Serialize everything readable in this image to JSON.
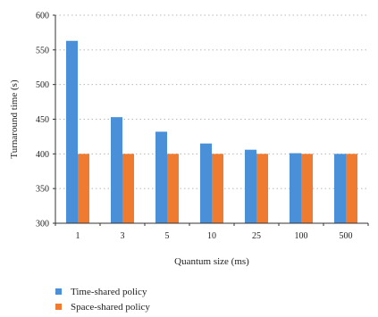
{
  "chart_data": {
    "type": "bar",
    "xlabel": "Quantum size (ms)",
    "ylabel": "Turnaround time (s)",
    "categories": [
      "1",
      "3",
      "5",
      "10",
      "25",
      "100",
      "500"
    ],
    "ylim": [
      300,
      600
    ],
    "yticks": [
      300,
      350,
      400,
      450,
      500,
      550,
      600
    ],
    "grid": true,
    "legend_position": "bottom-left",
    "series": [
      {
        "name": "Time-shared policy",
        "color": "#4a90d9",
        "values": [
          563,
          453,
          432,
          415,
          406,
          401,
          400
        ]
      },
      {
        "name": "Space-shared policy",
        "color": "#ee7b30",
        "values": [
          400,
          400,
          400,
          400,
          400,
          400,
          400
        ]
      }
    ]
  }
}
